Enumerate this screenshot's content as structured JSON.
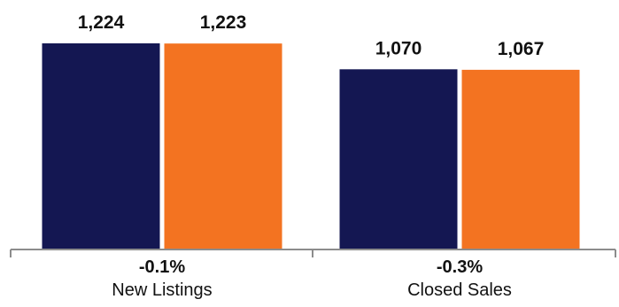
{
  "chart_data": {
    "type": "bar",
    "categories": [
      "New Listings",
      "Closed Sales"
    ],
    "changes": [
      "-0.1%",
      "-0.3%"
    ],
    "series": [
      {
        "values": [
          1224,
          1070
        ],
        "labels": [
          "1,224",
          "1,070"
        ],
        "color": "#141752"
      },
      {
        "values": [
          1223,
          1067
        ],
        "labels": [
          "1,223",
          "1,067"
        ],
        "color": "#f37321"
      }
    ],
    "ylim": [
      0,
      1224
    ],
    "grid": false,
    "legend": "none"
  }
}
